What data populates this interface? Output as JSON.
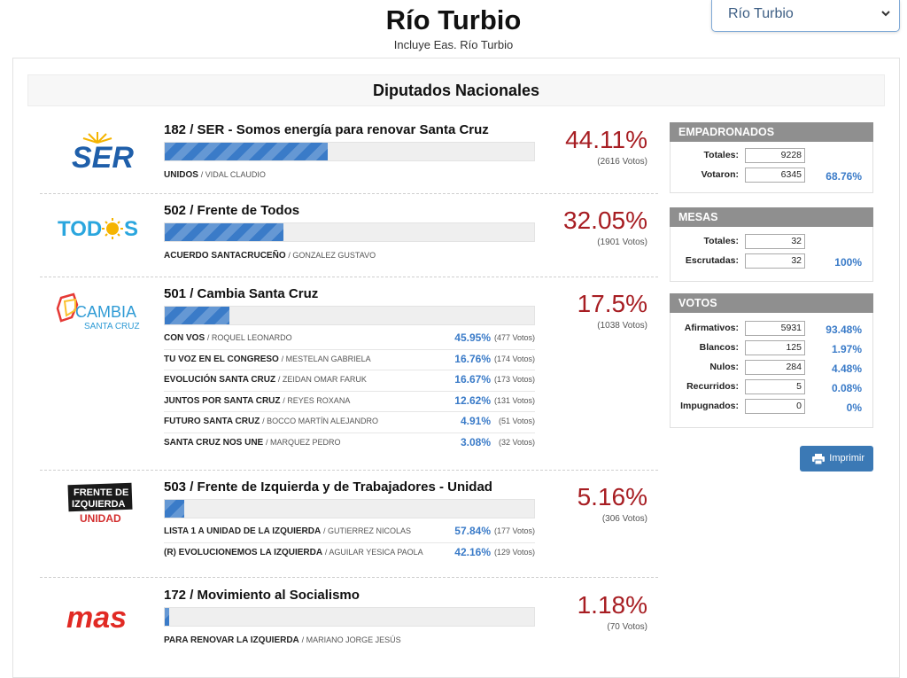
{
  "header": {
    "title": "Río Turbio",
    "subtitle": "Incluye Eas. Río Turbio"
  },
  "location_select": {
    "value": "Río Turbio"
  },
  "section_title": "Diputados Nacionales",
  "parties": [
    {
      "name": "182 / SER - Somos energía para renovar Santa Cruz",
      "percent": "44.11%",
      "percent_value": 44.11,
      "votes": "(2616 Votos)",
      "logo_text": "SER",
      "lists": [],
      "single_list": {
        "name": "UNIDOS",
        "candidate": "VIDAL CLAUDIO"
      }
    },
    {
      "name": "502 / Frente de Todos",
      "percent": "32.05%",
      "percent_value": 32.05,
      "votes": "(1901 Votos)",
      "logo_text": "TODOS",
      "lists": [],
      "single_list": {
        "name": "ACUERDO SANTACRUCEÑO",
        "candidate": "GONZALEZ GUSTAVO"
      }
    },
    {
      "name": "501 / Cambia Santa Cruz",
      "percent": "17.5%",
      "percent_value": 17.5,
      "votes": "(1038 Votos)",
      "logo_text": "CAMBIA",
      "logo_sub": "SANTA CRUZ",
      "lists": [
        {
          "name": "CON VOS",
          "candidate": "ROQUEL LEONARDO",
          "percent": "45.95%",
          "votes": "(477 Votos)"
        },
        {
          "name": "TU VOZ EN EL CONGRESO",
          "candidate": "MESTELAN GABRIELA",
          "percent": "16.76%",
          "votes": "(174 Votos)"
        },
        {
          "name": "EVOLUCIÓN SANTA CRUZ",
          "candidate": "ZEIDAN OMAR FARUK",
          "percent": "16.67%",
          "votes": "(173 Votos)"
        },
        {
          "name": "JUNTOS POR SANTA CRUZ",
          "candidate": "REYES ROXANA",
          "percent": "12.62%",
          "votes": "(131 Votos)"
        },
        {
          "name": "FUTURO SANTA CRUZ",
          "candidate": "BOCCO MARTÍN ALEJANDRO",
          "percent": "4.91%",
          "votes": "(51 Votos)"
        },
        {
          "name": "SANTA CRUZ NOS UNE",
          "candidate": "MARQUEZ PEDRO",
          "percent": "3.08%",
          "votes": "(32 Votos)"
        }
      ]
    },
    {
      "name": "503 / Frente de Izquierda y de Trabajadores - Unidad",
      "percent": "5.16%",
      "percent_value": 5.16,
      "votes": "(306 Votos)",
      "logo_text": "FRENTE DE IZQUIERDA",
      "logo_sub": "UNIDAD",
      "lists": [
        {
          "name": "LISTA 1 A UNIDAD DE LA IZQUIERDA",
          "candidate": "GUTIERREZ NICOLAS",
          "percent": "57.84%",
          "votes": "(177 Votos)"
        },
        {
          "name": "(R) EVOLUCIONEMOS LA IZQUIERDA",
          "candidate": "AGUILAR YESICA PAOLA",
          "percent": "42.16%",
          "votes": "(129 Votos)"
        }
      ]
    },
    {
      "name": "172 / Movimiento al Socialismo",
      "percent": "1.18%",
      "percent_value": 1.18,
      "votes": "(70 Votos)",
      "logo_text": "mas",
      "lists": [],
      "single_list": {
        "name": "PARA RENOVAR LA IZQUIERDA",
        "candidate": "MARIANO JORGE JESÚS"
      }
    }
  ],
  "empadronados": {
    "title": "EMPADRONADOS",
    "totales_label": "Totales:",
    "totales": "9228",
    "votaron_label": "Votaron:",
    "votaron": "6345",
    "votaron_pct": "68.76%"
  },
  "mesas": {
    "title": "MESAS",
    "totales_label": "Totales:",
    "totales": "32",
    "escrutadas_label": "Escrutadas:",
    "escrutadas": "32",
    "escrutadas_pct": "100%"
  },
  "votos": {
    "title": "VOTOS",
    "rows": [
      {
        "label": "Afirmativos:",
        "value": "5931",
        "pct": "93.48%"
      },
      {
        "label": "Blancos:",
        "value": "125",
        "pct": "1.97%"
      },
      {
        "label": "Nulos:",
        "value": "284",
        "pct": "4.48%"
      },
      {
        "label": "Recurridos:",
        "value": "5",
        "pct": "0.08%"
      },
      {
        "label": "Impugnados:",
        "value": "0",
        "pct": "0%"
      }
    ]
  },
  "print_button": "Imprimir",
  "colors": {
    "accent": "#3a7bc8",
    "percent_red": "#a71d22",
    "box_header": "#8f8f8f"
  }
}
